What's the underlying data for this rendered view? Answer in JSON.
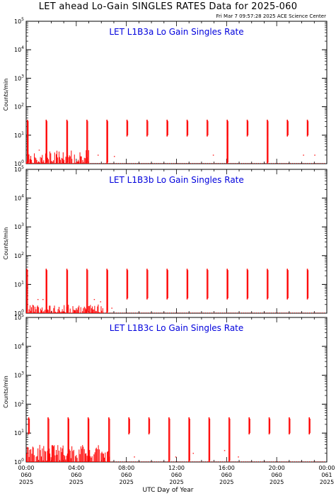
{
  "title": "LET ahead Lo-Gain SINGLES RATES Data for 2025-060",
  "timestamp": "Fri Mar  7 09:57:28 2025 ACE Science Center",
  "xlabel": "UTC Day of Year",
  "colors": {
    "data": "#ff0000",
    "panel_title": "#0000dd",
    "axes": "#000000"
  },
  "x_ticks": [
    {
      "t": 0,
      "time": "00:00",
      "day": "060",
      "year": "2025"
    },
    {
      "t": 4,
      "time": "04:00",
      "day": "060",
      "year": "2025"
    },
    {
      "t": 8,
      "time": "08:00",
      "day": "060",
      "year": "2025"
    },
    {
      "t": 12,
      "time": "12:00",
      "day": "060",
      "year": "2025"
    },
    {
      "t": 16,
      "time": "16:00",
      "day": "060",
      "year": "2025"
    },
    {
      "t": 20,
      "time": "20:00",
      "day": "060",
      "year": "2025"
    },
    {
      "t": 24,
      "time": "00:00",
      "day": "061",
      "year": "2025"
    }
  ],
  "chart_data": [
    {
      "type": "line",
      "title": "LET L1B3a Lo Gain Singles Rate",
      "ylabel": "Counts/min",
      "yscale": "log",
      "ylim": [
        1,
        100000
      ],
      "xlim": [
        0,
        24
      ],
      "ytick_exponents": [
        0,
        1,
        2,
        3,
        4,
        5
      ],
      "spikes": [
        {
          "x": 0.1,
          "low": 1,
          "high": 35
        },
        {
          "x": 1.6,
          "low": 1,
          "high": 35
        },
        {
          "x": 3.25,
          "low": 1,
          "high": 35
        },
        {
          "x": 4.85,
          "low": 1,
          "high": 35
        },
        {
          "x": 6.45,
          "low": 1,
          "high": 35
        },
        {
          "x": 8.05,
          "low": 9,
          "high": 35
        },
        {
          "x": 9.65,
          "low": 9,
          "high": 35
        },
        {
          "x": 11.25,
          "low": 9,
          "high": 35
        },
        {
          "x": 12.85,
          "low": 9,
          "high": 35
        },
        {
          "x": 14.45,
          "low": 9,
          "high": 35
        },
        {
          "x": 16.05,
          "low": 1,
          "high": 35
        },
        {
          "x": 17.65,
          "low": 9,
          "high": 35
        },
        {
          "x": 19.25,
          "low": 1,
          "high": 35
        },
        {
          "x": 20.85,
          "low": 9,
          "high": 35
        },
        {
          "x": 22.45,
          "low": 9,
          "high": 35
        }
      ],
      "noise": {
        "x_start": 0,
        "x_end": 5.1,
        "max_level": 3
      },
      "extra_dots": [
        {
          "x": 1.0,
          "y": 3
        },
        {
          "x": 5.7,
          "y": 2
        },
        {
          "x": 7.0,
          "y": 1.8
        },
        {
          "x": 14.9,
          "y": 2
        },
        {
          "x": 22.1,
          "y": 2
        },
        {
          "x": 23.0,
          "y": 2
        }
      ]
    },
    {
      "type": "line",
      "title": "LET L1B3b Lo Gain Singles Rate",
      "ylabel": "Counts/min",
      "yscale": "log",
      "ylim": [
        1,
        100000
      ],
      "xlim": [
        0,
        24
      ],
      "ytick_exponents": [
        0,
        1,
        2,
        3,
        4,
        5
      ],
      "spikes": [
        {
          "x": 0.05,
          "low": 1,
          "high": 35
        },
        {
          "x": 1.6,
          "low": 1,
          "high": 35
        },
        {
          "x": 3.25,
          "low": 1,
          "high": 35
        },
        {
          "x": 4.85,
          "low": 1,
          "high": 35
        },
        {
          "x": 6.45,
          "low": 1,
          "high": 35
        },
        {
          "x": 8.05,
          "low": 3,
          "high": 35
        },
        {
          "x": 9.65,
          "low": 3,
          "high": 35
        },
        {
          "x": 11.25,
          "low": 3,
          "high": 35
        },
        {
          "x": 12.85,
          "low": 3,
          "high": 35
        },
        {
          "x": 14.45,
          "low": 3,
          "high": 35
        },
        {
          "x": 16.05,
          "low": 3,
          "high": 35
        },
        {
          "x": 17.65,
          "low": 3,
          "high": 35
        },
        {
          "x": 19.25,
          "low": 3,
          "high": 35
        },
        {
          "x": 20.85,
          "low": 3,
          "high": 35
        },
        {
          "x": 22.45,
          "low": 3,
          "high": 35
        }
      ],
      "noise": {
        "x_start": 0,
        "x_end": 6.2,
        "max_level": 2
      },
      "extra_dots": [
        {
          "x": 0.9,
          "y": 3
        },
        {
          "x": 1.3,
          "y": 3
        },
        {
          "x": 5.4,
          "y": 3
        },
        {
          "x": 5.9,
          "y": 2.5
        },
        {
          "x": 6.8,
          "y": 1.5
        }
      ]
    },
    {
      "type": "line",
      "title": "LET L1B3c Lo Gain Singles Rate",
      "ylabel": "Counts/min",
      "yscale": "log",
      "ylim": [
        1,
        100000
      ],
      "xlim": [
        0,
        24
      ],
      "ytick_exponents": [
        0,
        1,
        2,
        3,
        4,
        5
      ],
      "spikes": [
        {
          "x": 0.2,
          "low": 9,
          "high": 35
        },
        {
          "x": 1.75,
          "low": 1,
          "high": 35
        },
        {
          "x": 3.35,
          "low": 1,
          "high": 35
        },
        {
          "x": 4.95,
          "low": 1,
          "high": 35
        },
        {
          "x": 6.6,
          "low": 1,
          "high": 35
        },
        {
          "x": 8.2,
          "low": 9,
          "high": 35
        },
        {
          "x": 9.8,
          "low": 9,
          "high": 35
        },
        {
          "x": 11.4,
          "low": 1,
          "high": 35
        },
        {
          "x": 13.0,
          "low": 1,
          "high": 35
        },
        {
          "x": 14.6,
          "low": 1,
          "high": 35
        },
        {
          "x": 16.2,
          "low": 1,
          "high": 35
        },
        {
          "x": 17.8,
          "low": 9,
          "high": 35
        },
        {
          "x": 19.4,
          "low": 9,
          "high": 35
        },
        {
          "x": 21.0,
          "low": 9,
          "high": 35
        },
        {
          "x": 22.6,
          "low": 9,
          "high": 35
        }
      ],
      "noise": {
        "x_start": 0,
        "x_end": 6.7,
        "max_level": 4
      },
      "extra_dots": [
        {
          "x": 8.6,
          "y": 1.5
        },
        {
          "x": 11.9,
          "y": 1.5
        },
        {
          "x": 13.3,
          "y": 2
        },
        {
          "x": 15.8,
          "y": 2.5
        },
        {
          "x": 16.9,
          "y": 1.5
        }
      ]
    }
  ]
}
